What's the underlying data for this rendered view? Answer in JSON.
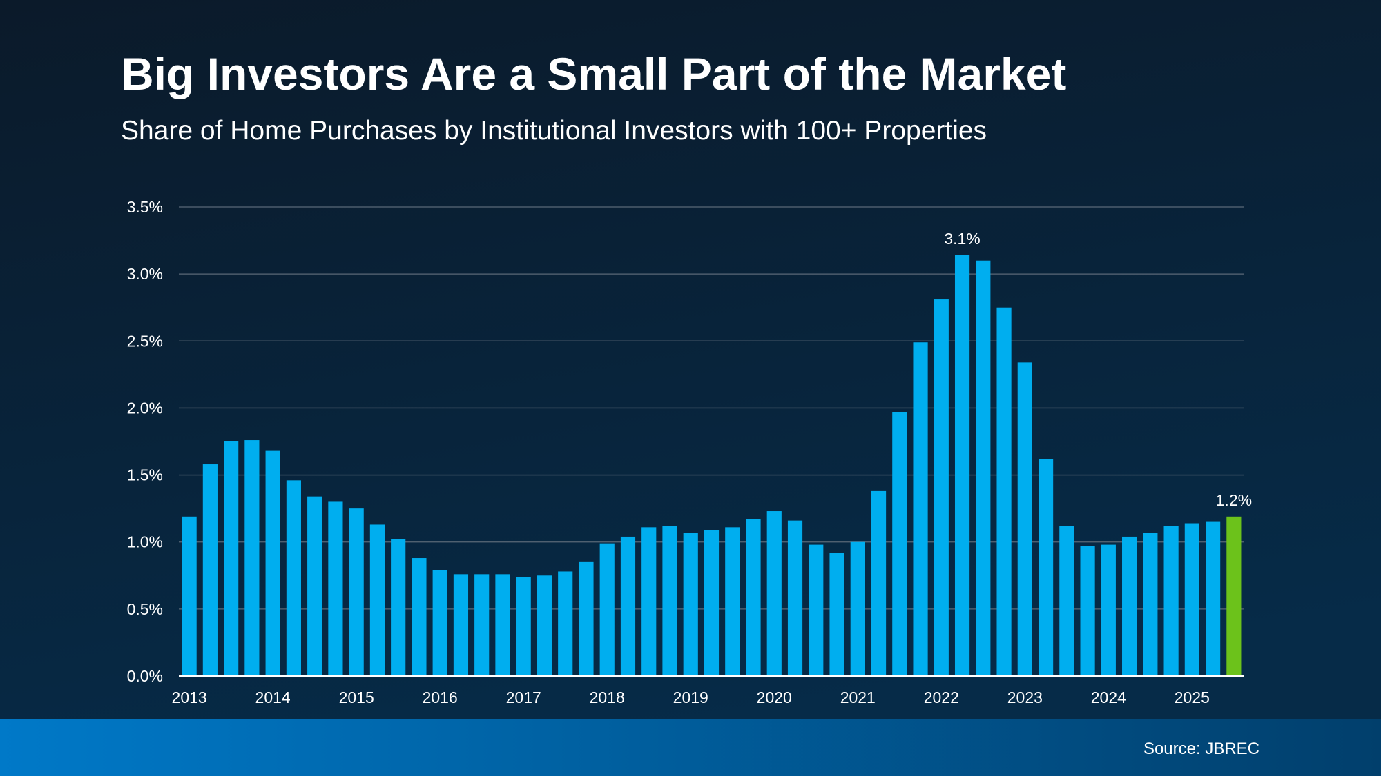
{
  "chart_data": {
    "type": "bar",
    "title": "Big Investors Are a Small Part of the Market",
    "subtitle": "Share of Home Purchases by Institutional Investors with 100+ Properties",
    "source": "Source: JBREC",
    "categories": [
      "2013",
      null,
      null,
      null,
      "2014",
      null,
      null,
      null,
      "2015",
      null,
      null,
      null,
      "2016",
      null,
      null,
      null,
      "2017",
      null,
      null,
      null,
      "2018",
      null,
      null,
      null,
      "2019",
      null,
      null,
      null,
      "2020",
      null,
      null,
      null,
      "2021",
      null,
      null,
      null,
      "2022",
      null,
      null,
      null,
      "2023",
      null,
      null,
      null,
      "2024",
      null,
      null,
      null,
      "2025",
      null,
      null
    ],
    "values": [
      1.19,
      1.58,
      1.75,
      1.76,
      1.68,
      1.46,
      1.34,
      1.3,
      1.25,
      1.13,
      1.02,
      0.88,
      0.79,
      0.76,
      0.76,
      0.76,
      0.74,
      0.75,
      0.78,
      0.85,
      0.99,
      1.04,
      1.11,
      1.12,
      1.07,
      1.09,
      1.11,
      1.17,
      1.23,
      1.16,
      0.98,
      0.92,
      1.0,
      1.38,
      1.97,
      2.49,
      2.81,
      3.14,
      3.1,
      2.75,
      2.34,
      1.62,
      1.12,
      0.97,
      0.98,
      1.04,
      1.07,
      1.12,
      1.14,
      1.15,
      1.19
    ],
    "value_labels": [
      null,
      null,
      null,
      null,
      null,
      null,
      null,
      null,
      null,
      null,
      null,
      null,
      null,
      null,
      null,
      null,
      null,
      null,
      null,
      null,
      null,
      null,
      null,
      null,
      null,
      null,
      null,
      null,
      null,
      null,
      null,
      null,
      null,
      null,
      null,
      null,
      null,
      "3.1%",
      null,
      null,
      null,
      null,
      null,
      null,
      null,
      null,
      null,
      null,
      null,
      null,
      "1.2%"
    ],
    "colors": [
      "#00aeef",
      "#00aeef",
      "#00aeef",
      "#00aeef",
      "#00aeef",
      "#00aeef",
      "#00aeef",
      "#00aeef",
      "#00aeef",
      "#00aeef",
      "#00aeef",
      "#00aeef",
      "#00aeef",
      "#00aeef",
      "#00aeef",
      "#00aeef",
      "#00aeef",
      "#00aeef",
      "#00aeef",
      "#00aeef",
      "#00aeef",
      "#00aeef",
      "#00aeef",
      "#00aeef",
      "#00aeef",
      "#00aeef",
      "#00aeef",
      "#00aeef",
      "#00aeef",
      "#00aeef",
      "#00aeef",
      "#00aeef",
      "#00aeef",
      "#00aeef",
      "#00aeef",
      "#00aeef",
      "#00aeef",
      "#00aeef",
      "#00aeef",
      "#00aeef",
      "#00aeef",
      "#00aeef",
      "#00aeef",
      "#00aeef",
      "#00aeef",
      "#00aeef",
      "#00aeef",
      "#00aeef",
      "#00aeef",
      "#00aeef",
      "#6cc21b"
    ],
    "ylim": [
      0,
      3.5
    ],
    "yticks": [
      {
        "value": 0,
        "label": "0.0%"
      },
      {
        "value": 0.5,
        "label": "0.5%"
      },
      {
        "value": 1,
        "label": "1.0%"
      },
      {
        "value": 1.5,
        "label": "1.5%"
      },
      {
        "value": 2,
        "label": "2.0%"
      },
      {
        "value": 2.5,
        "label": "2.5%"
      },
      {
        "value": 3,
        "label": "3.0%"
      },
      {
        "value": 3.5,
        "label": "3.5%"
      }
    ],
    "grid": true
  }
}
